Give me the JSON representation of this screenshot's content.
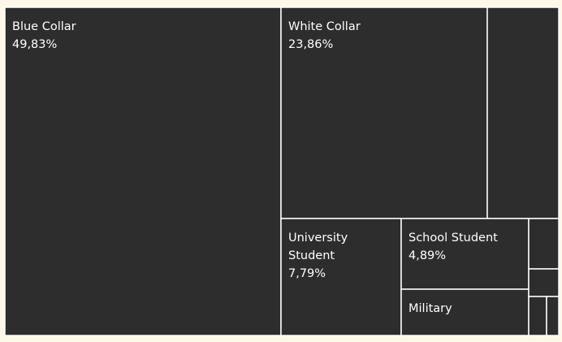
{
  "colors": {
    "background": "#fdf8e8",
    "tile": "#2d2d2d",
    "border": "#ffffff",
    "text": "#ffffff"
  },
  "chart_data": {
    "type": "treemap",
    "title": "",
    "categories": [
      "Blue Collar",
      "White Collar",
      "University Student",
      "School Student",
      "Military"
    ],
    "values": [
      49.83,
      23.86,
      7.79,
      4.89,
      null
    ],
    "labels": [
      {
        "name": "Blue Collar",
        "value": "49,83%"
      },
      {
        "name": "White Collar",
        "value": "23,86%"
      },
      {
        "name": "University Student",
        "value": "7,79%"
      },
      {
        "name": "School Student",
        "value": "4,89%"
      },
      {
        "name": "Military",
        "value": ""
      }
    ]
  }
}
